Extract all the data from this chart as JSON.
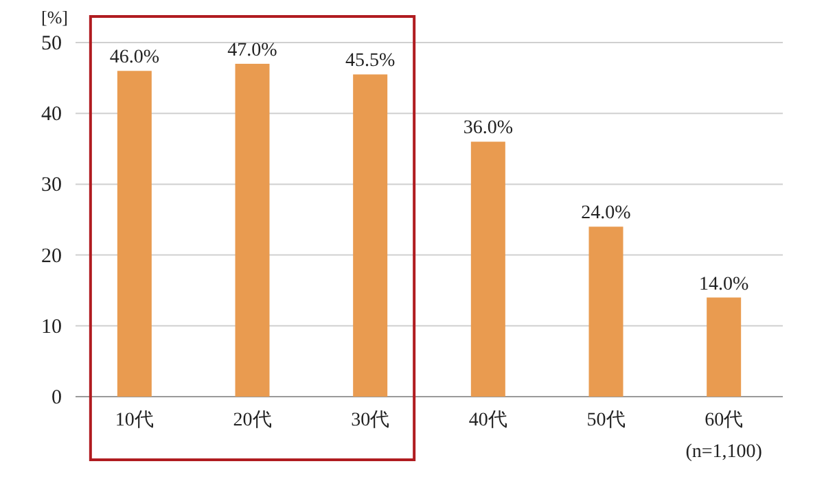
{
  "chart_data": {
    "type": "bar",
    "ylabel": "[%]",
    "categories": [
      "10代",
      "20代",
      "30代",
      "40代",
      "50代",
      "60代"
    ],
    "series": [
      {
        "color": "#e99b50",
        "values": [
          46.0,
          47.0,
          45.5,
          36.0,
          24.0,
          14.0
        ],
        "value_labels": [
          "46.0%",
          "47.0%",
          "45.5%",
          "36.0%",
          "24.0%",
          "14.0%"
        ]
      }
    ],
    "ylim": [
      0,
      50
    ],
    "yticks": [
      0,
      10,
      20,
      30,
      40,
      50
    ],
    "grid": "y",
    "annotations": [
      "(n=1,100)"
    ]
  }
}
